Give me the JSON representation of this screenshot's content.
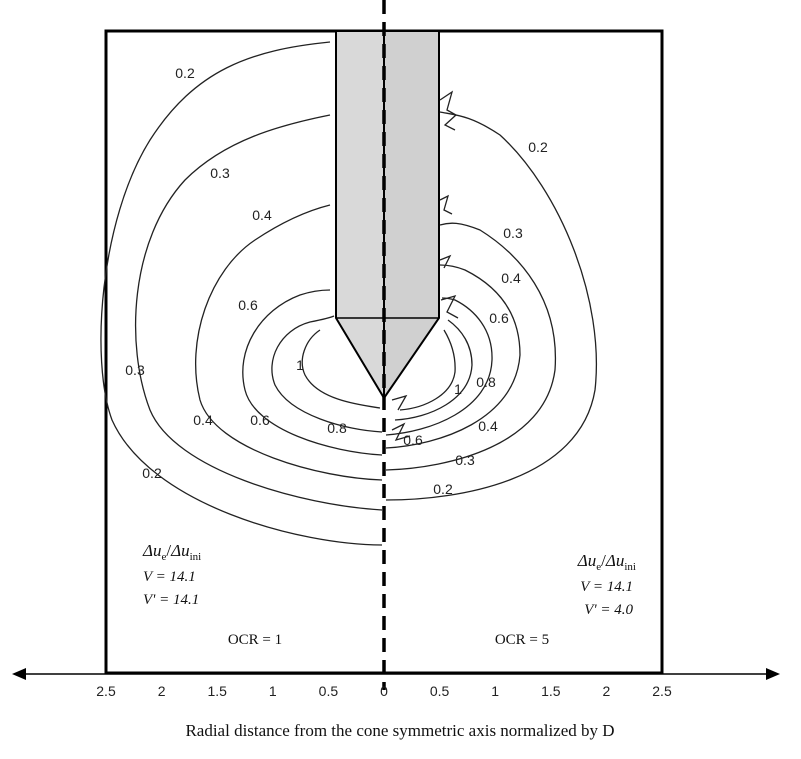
{
  "chart_data": {
    "type": "contour",
    "xlabel": "Radial distance from the cone symmetric axis normalized by D",
    "x_ticks_left": [
      "2.5",
      "2",
      "1.5",
      "1",
      "0.5",
      "0"
    ],
    "x_ticks_right": [
      "0.5",
      "1",
      "1.5",
      "2",
      "2.5"
    ],
    "xlim": [
      -2.5,
      2.5
    ],
    "panels": [
      {
        "side": "left",
        "quantity": "Δu",
        "quantity_sub_num": "e",
        "quantity_den": "Δu",
        "quantity_sub_den": "ini",
        "v_label": "V = 14.1",
        "vprime_label": "V' = 14.1",
        "ocr_label": "OCR = 1",
        "contour_labels": [
          "0.2",
          "0.3",
          "0.4",
          "0.6",
          "1",
          "0.3",
          "0.4",
          "0.6",
          "0.8",
          "0.2"
        ]
      },
      {
        "side": "right",
        "quantity": "Δu",
        "quantity_sub_num": "e",
        "quantity_den": "Δu",
        "quantity_sub_den": "ini",
        "v_label": "V = 14.1",
        "vprime_label": "V' = 4.0",
        "ocr_label": "OCR = 5",
        "contour_labels": [
          "0.2",
          "0.3",
          "0.4",
          "0.6",
          "1",
          "0.8",
          "0.4",
          "0.6",
          "0.3",
          "0.2"
        ]
      }
    ],
    "contour_levels": [
      0.2,
      0.3,
      0.4,
      0.6,
      0.8,
      1
    ]
  }
}
